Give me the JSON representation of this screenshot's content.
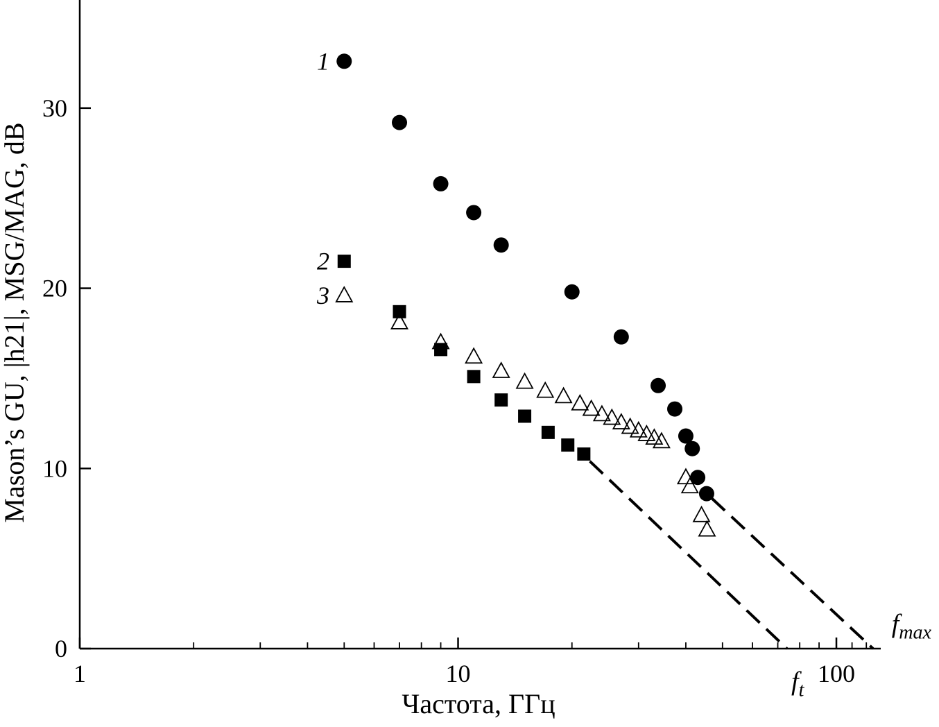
{
  "figure": {
    "background": "#ffffff",
    "marker_color": "#000000"
  },
  "chart_data": {
    "type": "scatter",
    "title": "",
    "xlabel": "Частота, ГГц",
    "ylabel": "Mason’s GU, |h21|, MSG/MAG, dB",
    "x_scale": "log",
    "xlim": [
      1,
      131
    ],
    "ylim": [
      0,
      36
    ],
    "grid": false,
    "x_ticks_major": [
      1,
      10,
      100
    ],
    "x_tick_labels": [
      "1",
      "10",
      "100"
    ],
    "x_ticks_minor": [
      2,
      3,
      4,
      5,
      6,
      7,
      8,
      9,
      20,
      30,
      40,
      50,
      60,
      70,
      80,
      90,
      110,
      120
    ],
    "y_ticks_major": [
      0,
      10,
      20,
      30
    ],
    "y_tick_labels": [
      "0",
      "10",
      "20",
      "30"
    ],
    "legend_position": "inline-left",
    "series": [
      {
        "name": "1",
        "label": "Mason's GU",
        "marker": "filled-circle",
        "color": "#000000",
        "points": [
          [
            5.0,
            32.6
          ],
          [
            7.0,
            29.2
          ],
          [
            9.0,
            25.8
          ],
          [
            11,
            24.2
          ],
          [
            13,
            22.4
          ],
          [
            20,
            19.8
          ],
          [
            27,
            17.3
          ],
          [
            33.8,
            14.6
          ],
          [
            37.4,
            13.3
          ],
          [
            40,
            11.8
          ],
          [
            41.6,
            11.1
          ],
          [
            43,
            9.5
          ],
          [
            45.4,
            8.6
          ]
        ]
      },
      {
        "name": "2",
        "label": "|h21|",
        "marker": "filled-square",
        "color": "#000000",
        "points": [
          [
            5.0,
            21.5
          ],
          [
            7.0,
            18.7
          ],
          [
            9.0,
            16.6
          ],
          [
            11,
            15.1
          ],
          [
            13,
            13.8
          ],
          [
            15,
            12.9
          ],
          [
            17.3,
            12.0
          ],
          [
            19.5,
            11.3
          ],
          [
            21.5,
            10.8
          ]
        ]
      },
      {
        "name": "3",
        "label": "MSG/MAG",
        "marker": "open-triangle",
        "color": "#000000",
        "points": [
          [
            5.0,
            19.6
          ],
          [
            7.0,
            18.1
          ],
          [
            9.0,
            17.0
          ],
          [
            11,
            16.2
          ],
          [
            13,
            15.4
          ],
          [
            15,
            14.8
          ],
          [
            17,
            14.3
          ],
          [
            19,
            14.0
          ],
          [
            21,
            13.6
          ],
          [
            22.5,
            13.3
          ],
          [
            24,
            13.0
          ],
          [
            25.5,
            12.8
          ],
          [
            27,
            12.55
          ],
          [
            28.5,
            12.3
          ],
          [
            30,
            12.1
          ],
          [
            31.5,
            11.9
          ],
          [
            33,
            11.7
          ],
          [
            34.5,
            11.5
          ],
          [
            40,
            9.5
          ],
          [
            41,
            9.0
          ],
          [
            44,
            7.4
          ],
          [
            45.5,
            6.6
          ]
        ]
      }
    ],
    "dashed_lines": [
      {
        "name": "ft-extrapolation",
        "from": [
          22.3,
          10.4
        ],
        "to": [
          74,
          0
        ],
        "slope_db_per_decade": -20
      },
      {
        "name": "fmax-extrapolation",
        "from": [
          46.8,
          8.35
        ],
        "to": [
          125,
          0
        ],
        "slope_db_per_decade": -20
      }
    ],
    "series_labels": [
      {
        "text": "1",
        "x": 4.4,
        "y": 32.6
      },
      {
        "text": "2",
        "x": 4.4,
        "y": 21.5
      },
      {
        "text": "3",
        "x": 4.4,
        "y": 19.6
      }
    ],
    "axis_annotations": [
      {
        "base": "f",
        "sub": "t",
        "x": 76,
        "y": -2.3
      },
      {
        "base": "f",
        "sub": "max",
        "x": 140,
        "y": 0.9
      }
    ]
  }
}
